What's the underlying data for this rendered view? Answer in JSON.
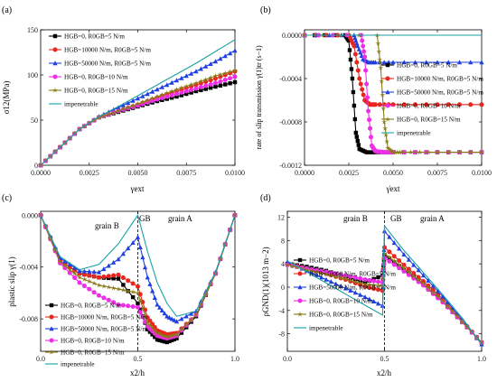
{
  "colors": {
    "black": "#000000",
    "red": "#e8261e",
    "blue": "#1f3fe0",
    "magenta": "#ee2ee6",
    "olive": "#8a7a18",
    "teal": "#1aa1a6"
  },
  "panels": {
    "a": {
      "label": "(a)",
      "ylabel": "σ12(MPa)",
      "xlabel": "γext",
      "xticks": [
        "0.0000",
        "0.0025",
        "0.0050",
        "0.0075",
        "0.0100"
      ],
      "yticks": [
        "0",
        "50",
        "100",
        "150"
      ]
    },
    "b": {
      "label": "(b)",
      "ylabel": "rate of slip transmission γ̇(1)tr (s−1)",
      "xlabel": "γ̇ext",
      "xticks": [
        "0.0000",
        "0.0025",
        "0.0050",
        "0.0075",
        "0.0100"
      ],
      "yticks": [
        "0.0000",
        "-0.0004",
        "-0.0008",
        "-0.0012"
      ]
    },
    "c": {
      "label": "(c)",
      "ylabel": "plastic slip γ(1)",
      "xlabel": "x2/h",
      "xticks": [
        "0.0",
        "0.5",
        "1.0"
      ],
      "yticks": [
        "0.000",
        "-0.004",
        "-0.008"
      ],
      "gb_label": "GB",
      "grain_b": "grain B",
      "grain_a": "grain A"
    },
    "d": {
      "label": "(d)",
      "ylabel": "ρGND(1)(1013 m−2)",
      "xlabel": "x2/h",
      "xticks": [
        "0.0",
        "0.5",
        "1.0"
      ],
      "yticks": [
        "12",
        "8",
        "4",
        "0",
        "-4",
        "-8"
      ],
      "gb_label": "GB",
      "grain_b": "grain B",
      "grain_a": "grain A"
    }
  },
  "legend": {
    "ab": [
      "HGB=0, R0GB=5 N/m",
      "HGB=10000 N/m, R0GB=5 N/m",
      "HGB=50000 N/m, R0GB=5 N/m",
      "HGB=0, R0GB=10 N/m",
      "HGB=0, R0GB=15 N/m",
      "impenetrable"
    ],
    "c": [
      "HGB=0, R0GB=5 N/m",
      "HGB=10000 N/m, R0GB=5 N/m",
      "HGB=50000 N/m, R0GB=5 N/m",
      "HGB=0, R0GB=10 N/m",
      "HGB=0, R0GB=15 N/m",
      "impenetrable"
    ],
    "d": [
      "HGB=0, R0GB=5 N/m",
      "HGB=10000 N/m, R0GB=5 N/m",
      "HGB=50000 N/m, R0GB=5 N/m",
      "HGB=0, R0GB=10 N/m",
      "HGB=0, R0GB=15 N/m",
      "impenetrable"
    ]
  },
  "chart_data": [
    {
      "panel": "a",
      "type": "line",
      "xlim": [
        0,
        0.01
      ],
      "ylim": [
        0,
        150
      ],
      "series_note_units": "x: shear strain, y: MPa",
      "series": [
        {
          "legend_index": 0,
          "color": "black",
          "marker": "square",
          "x": [
            0,
            0.001,
            0.002,
            0.003,
            0.004,
            0.005,
            0.006,
            0.007,
            0.008,
            0.009,
            0.01
          ],
          "y": [
            0,
            20,
            40,
            53,
            59,
            65,
            71,
            76,
            82,
            87,
            92
          ]
        },
        {
          "legend_index": 1,
          "color": "red",
          "marker": "circle",
          "x": [
            0,
            0.001,
            0.002,
            0.003,
            0.004,
            0.005,
            0.006,
            0.007,
            0.008,
            0.009,
            0.01
          ],
          "y": [
            0,
            20,
            40,
            53,
            60,
            67,
            75,
            82,
            89,
            96,
            104
          ]
        },
        {
          "legend_index": 2,
          "color": "blue",
          "marker": "triangle",
          "x": [
            0,
            0.001,
            0.002,
            0.003,
            0.004,
            0.005,
            0.006,
            0.007,
            0.008,
            0.009,
            0.01
          ],
          "y": [
            0,
            20,
            40,
            54,
            64,
            74,
            84,
            94,
            104,
            115,
            127
          ]
        },
        {
          "legend_index": 3,
          "color": "magenta",
          "marker": "circle",
          "x": [
            0,
            0.001,
            0.002,
            0.003,
            0.004,
            0.005,
            0.006,
            0.007,
            0.008,
            0.009,
            0.01
          ],
          "y": [
            0,
            20,
            40,
            53,
            60,
            66,
            73,
            79,
            85,
            91,
            98
          ]
        },
        {
          "legend_index": 4,
          "color": "olive",
          "marker": "star",
          "x": [
            0,
            0.001,
            0.002,
            0.003,
            0.004,
            0.005,
            0.006,
            0.007,
            0.008,
            0.009,
            0.01
          ],
          "y": [
            0,
            20,
            40,
            53,
            60,
            68,
            76,
            84,
            91,
            99,
            105
          ]
        },
        {
          "legend_index": 5,
          "color": "teal",
          "marker": "none",
          "x": [
            0,
            0.001,
            0.002,
            0.003,
            0.004,
            0.005,
            0.006,
            0.007,
            0.008,
            0.009,
            0.01
          ],
          "y": [
            0,
            20,
            40,
            54,
            65,
            77,
            89,
            101,
            113,
            126,
            139
          ]
        }
      ]
    },
    {
      "panel": "b",
      "type": "line",
      "xlim": [
        0,
        0.01
      ],
      "ylim": [
        -0.0012,
        5e-05
      ],
      "series": [
        {
          "legend_index": 0,
          "color": "black",
          "marker": "square",
          "x": [
            0,
            0.0023,
            0.0025,
            0.0027,
            0.0029,
            0.0031,
            0.0035,
            0.004,
            0.005,
            0.0075,
            0.01
          ],
          "y": [
            0,
            0,
            -5e-05,
            -0.0004,
            -0.0009,
            -0.00105,
            -0.00108,
            -0.00108,
            -0.00108,
            -0.00108,
            -0.00108
          ]
        },
        {
          "legend_index": 1,
          "color": "red",
          "marker": "circle",
          "x": [
            0,
            0.0025,
            0.0028,
            0.0031,
            0.0034,
            0.0037,
            0.004,
            0.005,
            0.0075,
            0.01
          ],
          "y": [
            0,
            0,
            -0.0001,
            -0.0004,
            -0.0006,
            -0.00064,
            -0.00064,
            -0.00064,
            -0.00064,
            -0.00064
          ]
        },
        {
          "legend_index": 2,
          "color": "blue",
          "marker": "triangle",
          "x": [
            0,
            0.0028,
            0.003,
            0.0033,
            0.0036,
            0.004,
            0.005,
            0.0075,
            0.01
          ],
          "y": [
            0,
            0,
            -0.0001,
            -0.00022,
            -0.00025,
            -0.00025,
            -0.00025,
            -0.00025,
            -0.00025
          ]
        },
        {
          "legend_index": 3,
          "color": "magenta",
          "marker": "circle",
          "x": [
            0,
            0.0032,
            0.0034,
            0.0036,
            0.0038,
            0.004,
            0.0045,
            0.005,
            0.0075,
            0.01
          ],
          "y": [
            0,
            0,
            -0.0002,
            -0.0007,
            -0.00102,
            -0.00107,
            -0.00108,
            -0.00108,
            -0.00108,
            -0.00108
          ]
        },
        {
          "legend_index": 4,
          "color": "olive",
          "marker": "star",
          "x": [
            0,
            0.0041,
            0.0043,
            0.0045,
            0.0047,
            0.005,
            0.0055,
            0.0075,
            0.01
          ],
          "y": [
            0,
            0,
            -0.0003,
            -0.0008,
            -0.00104,
            -0.00108,
            -0.00108,
            -0.00108,
            -0.00108
          ]
        },
        {
          "legend_index": 5,
          "color": "teal",
          "marker": "none",
          "x": [
            0,
            0.01
          ],
          "y": [
            0,
            0
          ]
        }
      ]
    },
    {
      "panel": "c",
      "type": "line",
      "xlim": [
        0,
        1
      ],
      "ylim": [
        -0.0105,
        0.0003
      ],
      "series": [
        {
          "legend_index": 0,
          "color": "black",
          "marker": "square",
          "x": [
            0,
            0.1,
            0.2,
            0.3,
            0.4,
            0.5,
            0.55,
            0.6,
            0.65,
            0.7,
            0.8,
            0.9,
            1
          ],
          "y": [
            0,
            -0.0035,
            -0.0045,
            -0.0048,
            -0.0049,
            -0.0068,
            -0.0088,
            -0.0096,
            -0.0098,
            -0.0095,
            -0.0078,
            -0.0045,
            0
          ]
        },
        {
          "legend_index": 1,
          "color": "red",
          "marker": "circle",
          "x": [
            0,
            0.1,
            0.2,
            0.3,
            0.4,
            0.5,
            0.55,
            0.6,
            0.65,
            0.7,
            0.8,
            0.9,
            1
          ],
          "y": [
            0,
            -0.0035,
            -0.0045,
            -0.0048,
            -0.0046,
            -0.0055,
            -0.0079,
            -0.0089,
            -0.0092,
            -0.0091,
            -0.0077,
            -0.0045,
            0
          ]
        },
        {
          "legend_index": 2,
          "color": "blue",
          "marker": "triangle",
          "x": [
            0,
            0.1,
            0.2,
            0.3,
            0.4,
            0.5,
            0.55,
            0.6,
            0.65,
            0.7,
            0.8,
            0.9,
            1
          ],
          "y": [
            0,
            -0.0033,
            -0.0043,
            -0.0044,
            -0.0034,
            -0.0017,
            -0.0048,
            -0.0069,
            -0.0078,
            -0.0082,
            -0.0074,
            -0.0044,
            0
          ]
        },
        {
          "legend_index": 3,
          "color": "magenta",
          "marker": "circle",
          "x": [
            0,
            0.1,
            0.2,
            0.3,
            0.4,
            0.5,
            0.55,
            0.6,
            0.65,
            0.7,
            0.8,
            0.9,
            1
          ],
          "y": [
            0,
            -0.0037,
            -0.0052,
            -0.0062,
            -0.0069,
            -0.0071,
            -0.0086,
            -0.0093,
            -0.0095,
            -0.0093,
            -0.0077,
            -0.0045,
            0
          ]
        },
        {
          "legend_index": 4,
          "color": "olive",
          "marker": "star",
          "x": [
            0,
            0.1,
            0.2,
            0.3,
            0.4,
            0.5,
            0.55,
            0.6,
            0.65,
            0.7,
            0.8,
            0.9,
            1
          ],
          "y": [
            0,
            -0.0036,
            -0.0048,
            -0.0054,
            -0.0057,
            -0.006,
            -0.0083,
            -0.0091,
            -0.0094,
            -0.0092,
            -0.0077,
            -0.0045,
            0
          ]
        },
        {
          "legend_index": 5,
          "color": "teal",
          "marker": "none",
          "x": [
            0,
            0.1,
            0.2,
            0.3,
            0.4,
            0.5,
            0.55,
            0.6,
            0.65,
            0.7,
            0.8,
            0.9,
            1
          ],
          "y": [
            0,
            -0.0032,
            -0.0042,
            -0.0038,
            -0.0022,
            0,
            -0.0028,
            -0.0052,
            -0.0068,
            -0.0078,
            -0.0074,
            -0.0044,
            0
          ]
        }
      ]
    },
    {
      "panel": "d",
      "type": "line",
      "xlim": [
        0,
        1
      ],
      "ylim": [
        -11,
        13
      ],
      "series": [
        {
          "legend_index": 0,
          "color": "black",
          "marker": "square",
          "x": [
            0,
            0.1,
            0.2,
            0.3,
            0.4,
            0.49,
            0.5,
            0.6,
            0.7,
            0.8,
            0.9,
            1
          ],
          "y": [
            4,
            3.5,
            2.8,
            1.8,
            0.8,
            2,
            5.5,
            3,
            0.5,
            -2.5,
            -6,
            -9.5
          ]
        },
        {
          "legend_index": 1,
          "color": "red",
          "marker": "circle",
          "x": [
            0,
            0.1,
            0.2,
            0.3,
            0.4,
            0.49,
            0.5,
            0.6,
            0.7,
            0.8,
            0.9,
            1
          ],
          "y": [
            4,
            3.2,
            2.3,
            1.3,
            0.1,
            -0.6,
            6.8,
            3.8,
            1,
            -2,
            -5.8,
            -9.5
          ]
        },
        {
          "legend_index": 2,
          "color": "blue",
          "marker": "triangle",
          "x": [
            0,
            0.1,
            0.2,
            0.3,
            0.4,
            0.49,
            0.5,
            0.6,
            0.7,
            0.8,
            0.9,
            1
          ],
          "y": [
            4.3,
            2.8,
            1.3,
            -0.2,
            -1.7,
            -3.2,
            9.6,
            5.6,
            2,
            -1.6,
            -5.6,
            -9.8
          ]
        },
        {
          "legend_index": 3,
          "color": "magenta",
          "marker": "circle",
          "x": [
            0,
            0.1,
            0.2,
            0.3,
            0.4,
            0.49,
            0.5,
            0.6,
            0.7,
            0.8,
            0.9,
            1
          ],
          "y": [
            3.8,
            3.2,
            2.6,
            2,
            1.3,
            0.8,
            5,
            2.7,
            0.3,
            -2.6,
            -6,
            -9.5
          ]
        },
        {
          "legend_index": 4,
          "color": "olive",
          "marker": "star",
          "x": [
            0,
            0.1,
            0.2,
            0.3,
            0.4,
            0.49,
            0.5,
            0.6,
            0.7,
            0.8,
            0.9,
            1
          ],
          "y": [
            3.8,
            3,
            2.2,
            1.4,
            0.5,
            0.2,
            5.8,
            3.2,
            0.6,
            -2.4,
            -5.9,
            -9.5
          ]
        },
        {
          "legend_index": 5,
          "color": "teal",
          "marker": "none",
          "x": [
            0,
            0.1,
            0.2,
            0.3,
            0.4,
            0.49,
            0.5,
            0.6,
            0.7,
            0.8,
            0.9,
            1
          ],
          "y": [
            4.5,
            2.6,
            0.7,
            -1.2,
            -3.1,
            -4.8,
            10.5,
            6.3,
            2.5,
            -1.3,
            -5.3,
            -9.8
          ]
        }
      ]
    }
  ]
}
